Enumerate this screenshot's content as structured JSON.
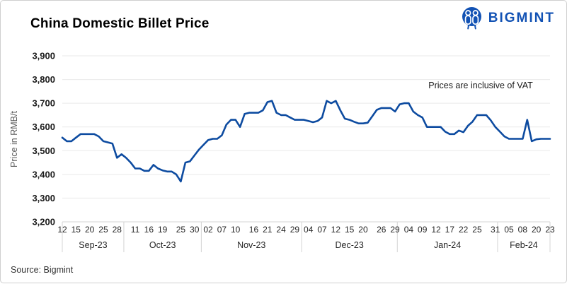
{
  "title": "China Domestic Billet Price",
  "logo": {
    "text": "BIGMINT",
    "icon": "two-people-in-circle",
    "color": "#1252b4"
  },
  "source": "Source: Bigmint",
  "chart_data": {
    "type": "line",
    "title": "China Domestic Billet Price",
    "ylabel": "Price in RMB/t",
    "annotation": "Prices are inclusive of VAT",
    "series_name": "China domestic billet price",
    "unit": "RMB/t",
    "ylim": [
      3200,
      3900
    ],
    "y_step": 100,
    "y_tick_labels": [
      "3,900",
      "3,800",
      "3,700",
      "3,600",
      "3,500",
      "3,400",
      "3,300",
      "3,200"
    ],
    "grid": "horizontal",
    "legend": "none",
    "line_color": "#0d4ba0",
    "months": [
      {
        "label": "Sep-23",
        "days": [
          "12",
          "13",
          "14",
          "15",
          "18",
          "19",
          "20",
          "21",
          "22",
          "25",
          "26",
          "27",
          "28",
          "29"
        ],
        "values": [
          3555,
          3540,
          3540,
          3555,
          3570,
          3570,
          3570,
          3570,
          3560,
          3540,
          3535,
          3530,
          3470,
          3485
        ],
        "tick_days": [
          "12",
          "15",
          "20",
          "25",
          "28"
        ]
      },
      {
        "label": "Oct-23",
        "days": [
          "09",
          "10",
          "11",
          "12",
          "13",
          "16",
          "17",
          "18",
          "19",
          "20",
          "23",
          "24",
          "25",
          "26",
          "27",
          "30",
          "31"
        ],
        "values": [
          3470,
          3450,
          3425,
          3425,
          3415,
          3415,
          3440,
          3425,
          3417,
          3412,
          3412,
          3400,
          3370,
          3450,
          3455,
          3480,
          3505
        ],
        "tick_days": [
          "11",
          "16",
          "19",
          "25",
          "30"
        ]
      },
      {
        "label": "Nov-23",
        "days": [
          "01",
          "02",
          "03",
          "06",
          "07",
          "08",
          "09",
          "10",
          "13",
          "14",
          "15",
          "16",
          "17",
          "20",
          "21",
          "22",
          "23",
          "24",
          "27",
          "28",
          "29",
          "30"
        ],
        "values": [
          3525,
          3545,
          3550,
          3550,
          3565,
          3610,
          3630,
          3630,
          3600,
          3655,
          3660,
          3660,
          3660,
          3670,
          3705,
          3710,
          3660,
          3650,
          3650,
          3640,
          3630,
          3630
        ],
        "tick_days": [
          "02",
          "07",
          "10",
          "16",
          "21",
          "24",
          "29"
        ]
      },
      {
        "label": "Dec-23",
        "days": [
          "01",
          "04",
          "05",
          "06",
          "07",
          "08",
          "11",
          "12",
          "13",
          "14",
          "15",
          "18",
          "19",
          "20",
          "21",
          "22",
          "25",
          "26",
          "27",
          "28",
          "29"
        ],
        "values": [
          3630,
          3625,
          3620,
          3625,
          3640,
          3710,
          3700,
          3710,
          3670,
          3635,
          3630,
          3622,
          3615,
          3615,
          3618,
          3645,
          3672,
          3680,
          3680,
          3680,
          3665
        ],
        "tick_days": [
          "04",
          "07",
          "12",
          "15",
          "20",
          "26",
          "29"
        ]
      },
      {
        "label": "Jan-24",
        "days": [
          "02",
          "03",
          "04",
          "05",
          "08",
          "09",
          "10",
          "11",
          "12",
          "15",
          "16",
          "17",
          "18",
          "19",
          "22",
          "23",
          "24",
          "25",
          "26",
          "29",
          "30",
          "31"
        ],
        "values": [
          3695,
          3700,
          3700,
          3665,
          3650,
          3640,
          3600,
          3600,
          3600,
          3600,
          3580,
          3570,
          3570,
          3585,
          3578,
          3605,
          3622,
          3650,
          3650,
          3650,
          3628,
          3600
        ],
        "tick_days": [
          "04",
          "09",
          "12",
          "17",
          "22",
          "25",
          "31"
        ]
      },
      {
        "label": "Feb-24",
        "days": [
          "01",
          "02",
          "05",
          "06",
          "07",
          "08",
          "09",
          "19",
          "20",
          "21",
          "22",
          "23"
        ],
        "values": [
          3580,
          3560,
          3550,
          3550,
          3550,
          3550,
          3630,
          3540,
          3548,
          3550,
          3550,
          3550
        ],
        "tick_days": [
          "05",
          "08",
          "20",
          "23"
        ]
      }
    ]
  }
}
